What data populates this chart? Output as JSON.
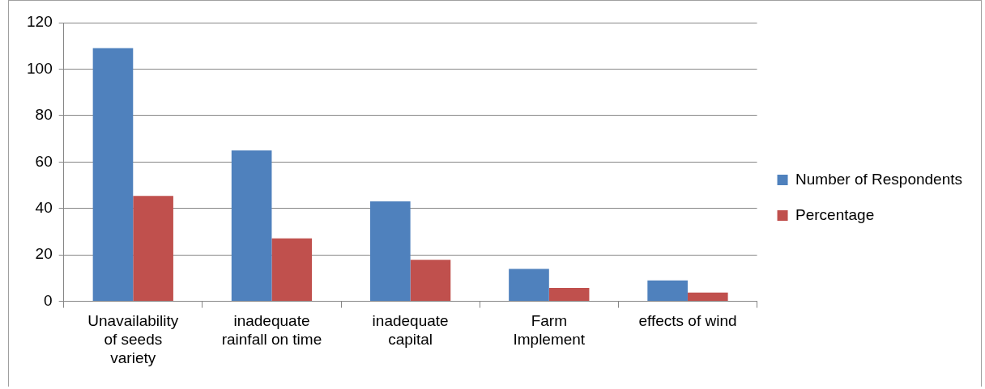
{
  "chart_data": {
    "type": "bar",
    "categories": [
      "Unavailability of seeds variety",
      "inadequate rainfall on time",
      "inadequate capital",
      "Farm Implement",
      "effects of wind"
    ],
    "series": [
      {
        "name": "Number of Respondents",
        "color": "#4f81bd",
        "values": [
          109,
          65,
          43,
          14,
          9
        ]
      },
      {
        "name": "Percentage",
        "color": "#c0504d",
        "values": [
          45.4,
          27.1,
          17.9,
          5.8,
          3.8
        ]
      }
    ],
    "ylim": [
      0,
      120
    ],
    "yticks": [
      0,
      20,
      40,
      60,
      80,
      100,
      120
    ],
    "grid": "y",
    "legend": "right"
  }
}
